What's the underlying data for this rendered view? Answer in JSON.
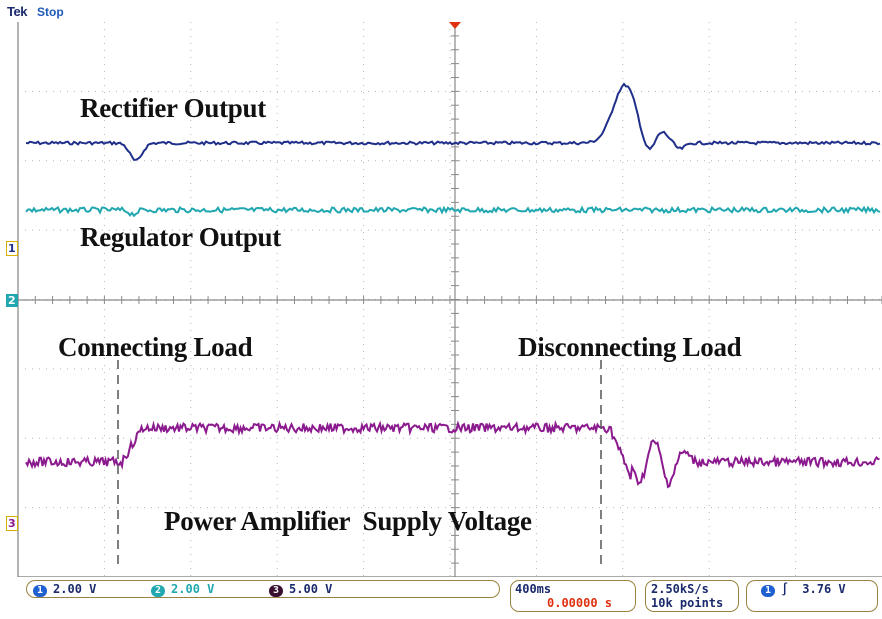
{
  "header": {
    "brand": "Tek",
    "status": "Stop"
  },
  "annotations": {
    "rectifier": "Rectifier Output",
    "regulator": "Regulator Output",
    "connecting": "Connecting Load",
    "disconnecting": "Disconnecting Load",
    "amplifier": "Power Amplifier  Supply Voltage"
  },
  "channels": [
    {
      "marker": "1",
      "scale": "2.00 V",
      "color": "#1f2f8a"
    },
    {
      "marker": "2",
      "scale": "2.00 V",
      "color": "#20a7b0"
    },
    {
      "marker": "3",
      "scale": "5.00 V",
      "color": "#8b1a8f"
    }
  ],
  "timebase": {
    "scale": "400ms",
    "position": "0.00000 s"
  },
  "acquisition": {
    "rate": "2.50kS/s",
    "length": "10k points"
  },
  "trigger": {
    "source": "1",
    "slope_symbol": "∫",
    "level": "3.76 V"
  },
  "colors": {
    "grid": "#9c9c9c",
    "trigger_marker": "#e03010",
    "record_bar": "#3aa0d0",
    "readout_text": "#1a2a6c",
    "position_text": "#e03010"
  }
}
